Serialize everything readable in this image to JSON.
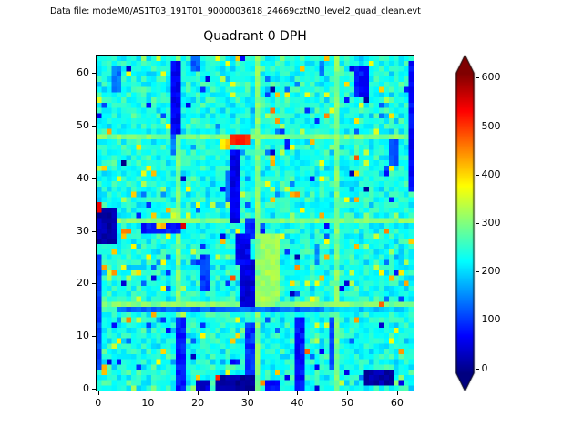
{
  "figure": {
    "datafile_label": "Data file: modeM0/AS1T03_191T01_9000003618_24669cztM0_level2_quad_clean.evt",
    "title": "Quadrant 0 DPH"
  },
  "chart_data": {
    "type": "heatmap",
    "title": "Quadrant 0 DPH",
    "grid_size": [
      64,
      64
    ],
    "xlim": [
      -0.5,
      63.5
    ],
    "ylim": [
      -0.5,
      63.5
    ],
    "xticks": [
      0,
      10,
      20,
      30,
      40,
      50,
      60
    ],
    "yticks": [
      0,
      10,
      20,
      30,
      40,
      50,
      60
    ],
    "colormap": "jet",
    "vmin": -10,
    "vmax": 610,
    "colorbar": {
      "ticks": [
        0,
        100,
        200,
        300,
        400,
        500,
        600
      ],
      "extend": "both",
      "low_arrow_color": "#000080",
      "high_arrow_color": "#800000"
    },
    "background": {
      "mean": 235,
      "noise": 55,
      "speckle_high_prob": 0.05,
      "speckle_low_prob": 0.03
    },
    "gridlines": {
      "cols": [
        16,
        32,
        48
      ],
      "rows": [
        16,
        32,
        48
      ],
      "value": 300
    },
    "features": [
      {
        "x": 15,
        "y": 49,
        "w": 2,
        "h": 14,
        "v": 60
      },
      {
        "x": 15,
        "y": 45,
        "w": 1,
        "h": 4,
        "v": 140
      },
      {
        "x": 3,
        "y": 57,
        "w": 2,
        "h": 5,
        "v": 140
      },
      {
        "x": 19,
        "y": 61,
        "w": 2,
        "h": 3,
        "v": 120
      },
      {
        "x": 45,
        "y": 60,
        "w": 1,
        "h": 3,
        "v": 150
      },
      {
        "x": 52,
        "y": 56,
        "w": 3,
        "h": 6,
        "v": 75
      },
      {
        "x": 63,
        "y": 38,
        "w": 1,
        "h": 25,
        "v": 70
      },
      {
        "x": 59,
        "y": 43,
        "w": 2,
        "h": 5,
        "v": 120
      },
      {
        "x": 27,
        "y": 32,
        "w": 2,
        "h": 14,
        "v": 55
      },
      {
        "x": 26,
        "y": 36,
        "w": 1,
        "h": 6,
        "v": 130
      },
      {
        "x": 29,
        "y": 16,
        "w": 3,
        "h": 9,
        "v": 45
      },
      {
        "x": 28,
        "y": 24,
        "w": 3,
        "h": 6,
        "v": 60
      },
      {
        "x": 30,
        "y": 29,
        "w": 2,
        "h": 4,
        "v": 90
      },
      {
        "x": 21,
        "y": 19,
        "w": 2,
        "h": 7,
        "v": 100
      },
      {
        "x": 0,
        "y": 28,
        "w": 4,
        "h": 7,
        "v": 20
      },
      {
        "x": 9,
        "y": 30,
        "w": 8,
        "h": 2,
        "v": 80
      },
      {
        "x": 0,
        "y": 4,
        "w": 1,
        "h": 22,
        "v": 110
      },
      {
        "x": 4,
        "y": 15,
        "w": 42,
        "h": 1,
        "v": 130
      },
      {
        "x": 46,
        "y": 15,
        "w": 17,
        "h": 1,
        "v": 190
      },
      {
        "x": 16,
        "y": 0,
        "w": 2,
        "h": 14,
        "v": 85
      },
      {
        "x": 30,
        "y": 3,
        "w": 2,
        "h": 10,
        "v": 95
      },
      {
        "x": 40,
        "y": 0,
        "w": 2,
        "h": 14,
        "v": 75
      },
      {
        "x": 47,
        "y": 4,
        "w": 1,
        "h": 10,
        "v": 110
      },
      {
        "x": 24,
        "y": 0,
        "w": 8,
        "h": 3,
        "v": 12
      },
      {
        "x": 54,
        "y": 1,
        "w": 6,
        "h": 3,
        "v": 18
      },
      {
        "x": 20,
        "y": 0,
        "w": 3,
        "h": 2,
        "v": 40
      },
      {
        "x": 34,
        "y": 0,
        "w": 3,
        "h": 2,
        "v": 70
      },
      {
        "x": 44,
        "y": 24,
        "w": 1,
        "h": 4,
        "v": 150
      },
      {
        "x": 33,
        "y": 17,
        "w": 4,
        "h": 13,
        "v": 320
      },
      {
        "x": 27,
        "y": 47,
        "w": 4,
        "h": 2,
        "v": 520
      },
      {
        "x": 25,
        "y": 46,
        "w": 2,
        "h": 2,
        "v": 400
      },
      {
        "x": 35,
        "y": 43,
        "w": 1,
        "h": 2,
        "v": 430
      },
      {
        "x": 0,
        "y": 34,
        "w": 1,
        "h": 2,
        "v": 560
      },
      {
        "x": 17,
        "y": 31,
        "w": 1,
        "h": 1,
        "v": 540
      },
      {
        "x": 5,
        "y": 30,
        "w": 2,
        "h": 1,
        "v": 470
      },
      {
        "x": 12,
        "y": 31,
        "w": 2,
        "h": 1,
        "v": 410
      },
      {
        "x": 57,
        "y": 16,
        "w": 1,
        "h": 1,
        "v": 480
      },
      {
        "x": 24,
        "y": 2,
        "w": 1,
        "h": 1,
        "v": 520
      },
      {
        "x": 33,
        "y": 1,
        "w": 1,
        "h": 1,
        "v": 460
      }
    ]
  }
}
